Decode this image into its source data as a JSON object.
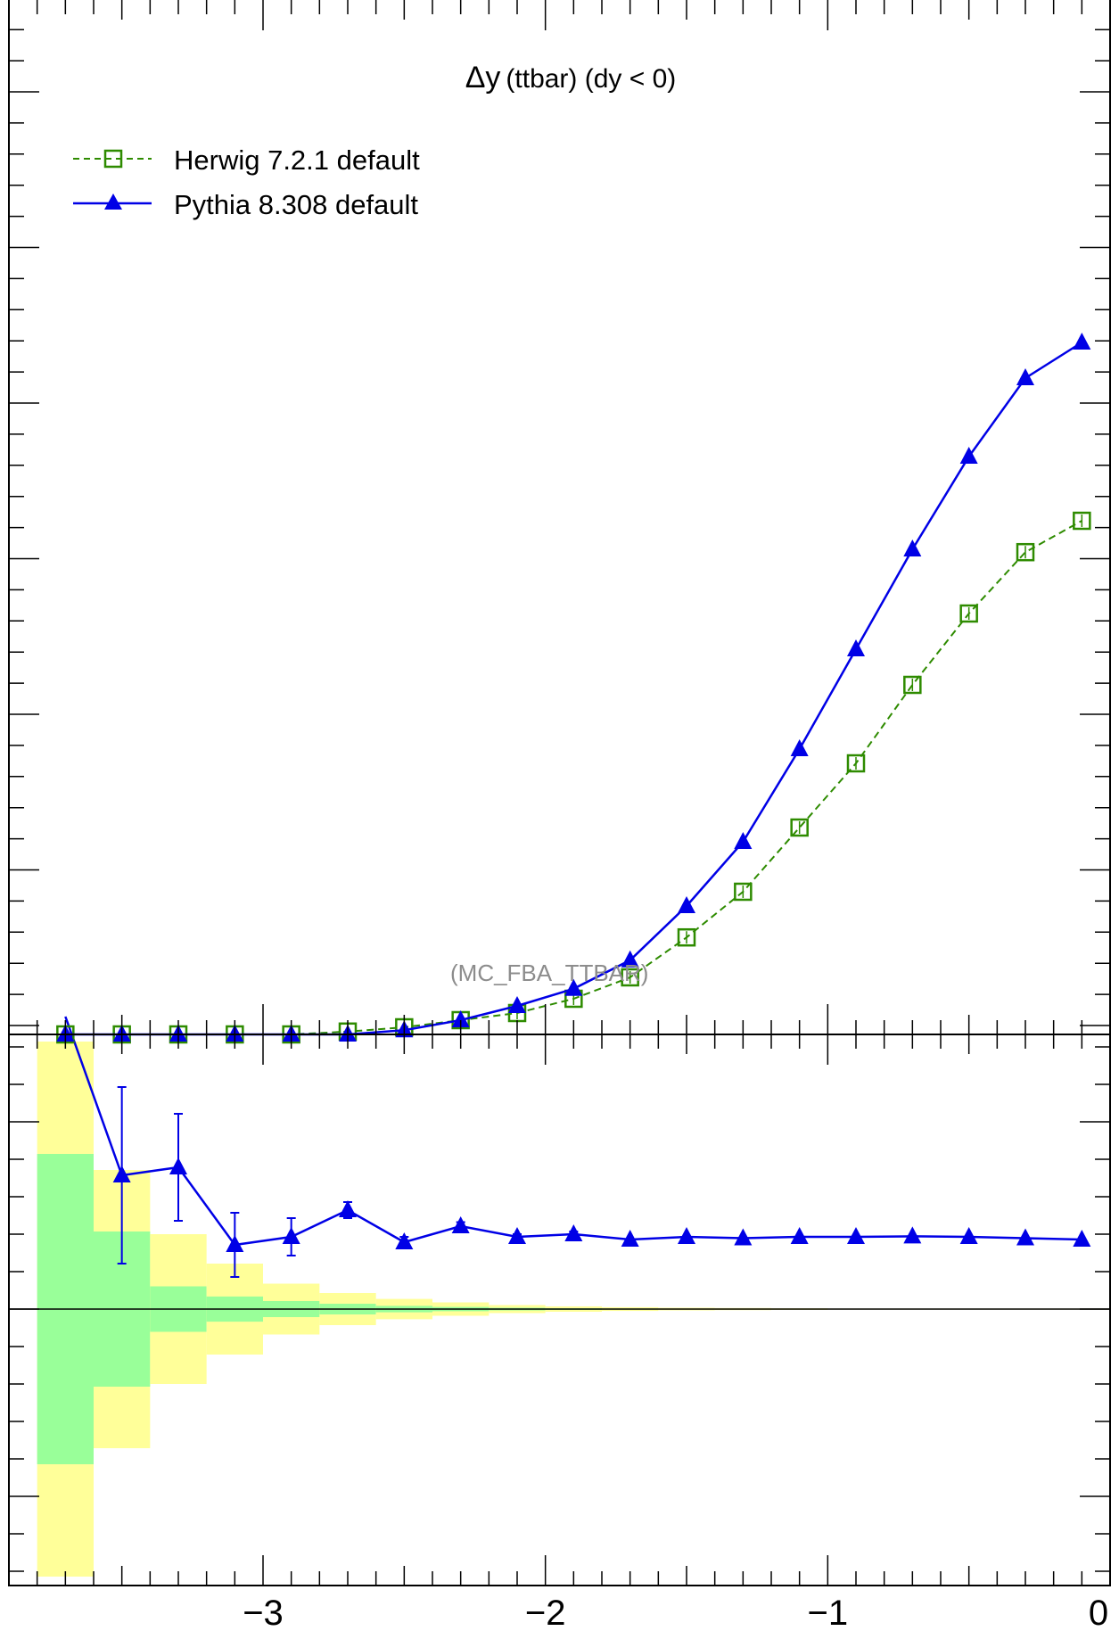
{
  "chart_data": {
    "type": "line",
    "title": "Δy",
    "title_suffix": "(ttbar) (dy < 0)",
    "watermark": "(MC_FBA_TTBAR)",
    "x_tick_labels": [
      "−3",
      "−2",
      "−1",
      "0"
    ],
    "x_ticks": [
      -3,
      -2,
      -1,
      0
    ],
    "xlim": [
      -3.9,
      0
    ],
    "main_ylim": [
      0,
      1
    ],
    "ratio_ylim": [
      -1,
      1
    ],
    "legend_position": "top-left",
    "x": [
      -3.7,
      -3.5,
      -3.3,
      -3.1,
      -2.9,
      -2.7,
      -2.5,
      -2.3,
      -2.1,
      -1.9,
      -1.7,
      -1.5,
      -1.3,
      -1.1,
      -0.9,
      -0.7,
      -0.5,
      -0.3,
      -0.1
    ],
    "series": [
      {
        "name": "Herwig 7.2.1 default",
        "color": "#2e8b00",
        "marker": "open-square",
        "linestyle": "dashed",
        "values": [
          0.0,
          0.0,
          0.0,
          0.0,
          0.0,
          0.002,
          0.005,
          0.01,
          0.015,
          0.025,
          0.04,
          0.068,
          0.1,
          0.145,
          0.19,
          0.245,
          0.295,
          0.338,
          0.36
        ]
      },
      {
        "name": "Pythia 8.308 default",
        "color": "#0000e6",
        "marker": "filled-triangle",
        "linestyle": "solid",
        "values": [
          0.0,
          0.0,
          0.0,
          0.0,
          0.0,
          0.0,
          0.003,
          0.01,
          0.02,
          0.032,
          0.052,
          0.09,
          0.135,
          0.2,
          0.27,
          0.34,
          0.405,
          0.46,
          0.485
        ]
      }
    ],
    "ratio": {
      "pythia_values": [
        1.2,
        0.5,
        0.53,
        0.24,
        0.27,
        0.37,
        0.25,
        0.31,
        0.27,
        0.28,
        0.26,
        0.27,
        0.265,
        0.27,
        0.27,
        0.272,
        0.27,
        0.265,
        0.26
      ],
      "pythia_errors": [
        0.0,
        0.33,
        0.2,
        0.12,
        0.07,
        0.03,
        0.02,
        0.015,
        0.01,
        0.01,
        0.0,
        0.0,
        0.0,
        0.0,
        0.0,
        0.0,
        0.0,
        0.0,
        0.0
      ],
      "band_inner": [
        0.58,
        0.29,
        0.085,
        0.047,
        0.03,
        0.02,
        0.012,
        0.008,
        0.005,
        0.003,
        0.002,
        0.0015,
        0.001,
        0.001,
        0.0005,
        0.0005,
        0.0005,
        0.0005,
        0.0005
      ],
      "band_outer": [
        1.0,
        0.52,
        0.28,
        0.17,
        0.095,
        0.06,
        0.038,
        0.025,
        0.015,
        0.01,
        0.007,
        0.005,
        0.004,
        0.003,
        0.002,
        0.002,
        0.002,
        0.002,
        0.002
      ]
    }
  }
}
